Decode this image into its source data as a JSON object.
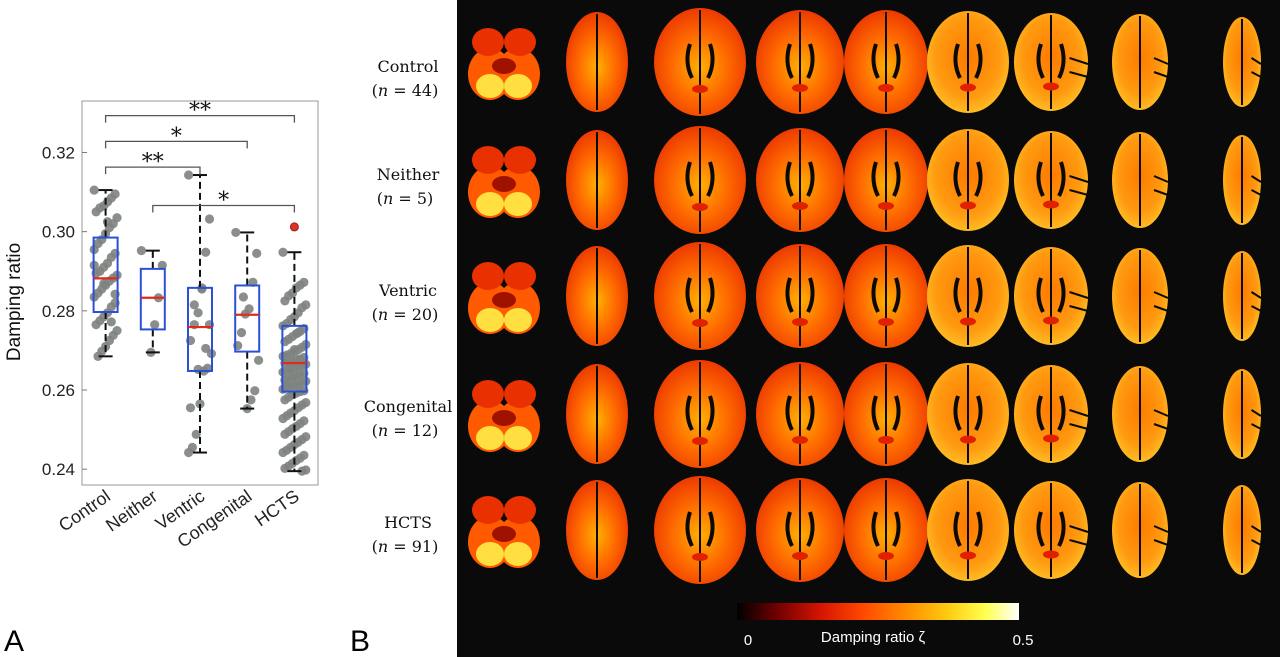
{
  "panel_letters": {
    "a": "A",
    "b": "B"
  },
  "chart_data": [
    {
      "type": "box",
      "panel": "A",
      "ylabel": "Damping ratio",
      "ylim": [
        0.236,
        0.333
      ],
      "yticks": [
        0.24,
        0.26,
        0.28,
        0.3,
        0.32
      ],
      "ytick_labels": [
        "0.24",
        "0.26",
        "0.28",
        "0.30",
        "0.32"
      ],
      "categories": [
        "Control",
        "Neither",
        "Ventric",
        "Congenital",
        "HCTS"
      ],
      "box_color": "#2b4fd6",
      "median_color": "#e02b1c",
      "point_color": "#7d8380",
      "outlier_color": "#e0302a",
      "boxes": [
        {
          "q1": 0.2797,
          "median": 0.2882,
          "q3": 0.2985,
          "whisker_low": 0.2685,
          "whisker_high": 0.3105,
          "points": [
            0.3105,
            0.3095,
            0.3085,
            0.3075,
            0.3065,
            0.306,
            0.305,
            0.3035,
            0.302,
            0.301,
            0.2995,
            0.298,
            0.297,
            0.2955,
            0.2945,
            0.2935,
            0.292,
            0.291,
            0.29,
            0.2895,
            0.289,
            0.2883,
            0.2875,
            0.2865,
            0.2855,
            0.2845,
            0.2835,
            0.282,
            0.281,
            0.2795,
            0.2785,
            0.2775,
            0.2765,
            0.275,
            0.2738,
            0.2725,
            0.271,
            0.2698,
            0.2685,
            0.2915,
            0.2842,
            0.2772,
            0.3025,
            0.2868
          ],
          "outliers": []
        },
        {
          "q1": 0.2753,
          "median": 0.2833,
          "q3": 0.2906,
          "whisker_low": 0.2695,
          "whisker_high": 0.2952,
          "points": [
            0.2952,
            0.2915,
            0.2833,
            0.2765,
            0.2695
          ],
          "outliers": []
        },
        {
          "q1": 0.2648,
          "median": 0.2759,
          "q3": 0.2858,
          "whisker_low": 0.2442,
          "whisker_high": 0.3143,
          "points": [
            0.3143,
            0.3032,
            0.2948,
            0.2855,
            0.2795,
            0.2765,
            0.2725,
            0.2692,
            0.2655,
            0.2648,
            0.2565,
            0.2488,
            0.2455,
            0.2442,
            0.2765,
            0.2705,
            0.2858,
            0.2652,
            0.2815,
            0.2555
          ],
          "outliers": []
        },
        {
          "q1": 0.2697,
          "median": 0.279,
          "q3": 0.2864,
          "whisker_low": 0.2553,
          "whisker_high": 0.2998,
          "points": [
            0.2998,
            0.2945,
            0.2872,
            0.2805,
            0.2792,
            0.2745,
            0.2712,
            0.2675,
            0.2598,
            0.2575,
            0.2553,
            0.2835
          ],
          "outliers": []
        },
        {
          "q1": 0.2596,
          "median": 0.2668,
          "q3": 0.2762,
          "whisker_low": 0.2395,
          "whisker_high": 0.2948,
          "points": [
            0.2948,
            0.2872,
            0.2865,
            0.2858,
            0.2845,
            0.2838,
            0.2825,
            0.2815,
            0.2808,
            0.2795,
            0.2785,
            0.2778,
            0.2768,
            0.2762,
            0.2755,
            0.2748,
            0.2742,
            0.2735,
            0.2728,
            0.2722,
            0.2715,
            0.2708,
            0.2702,
            0.2695,
            0.2692,
            0.2688,
            0.2685,
            0.2682,
            0.2678,
            0.2675,
            0.2672,
            0.2669,
            0.2668,
            0.2665,
            0.2662,
            0.2658,
            0.2655,
            0.2652,
            0.2648,
            0.2645,
            0.2642,
            0.2638,
            0.2635,
            0.2632,
            0.2628,
            0.2625,
            0.2622,
            0.2618,
            0.2615,
            0.2612,
            0.2608,
            0.2605,
            0.2602,
            0.2598,
            0.2596,
            0.2592,
            0.2588,
            0.2582,
            0.2575,
            0.2568,
            0.2562,
            0.2555,
            0.2548,
            0.2542,
            0.2535,
            0.2528,
            0.2522,
            0.2515,
            0.2508,
            0.2502,
            0.2495,
            0.2488,
            0.2482,
            0.2475,
            0.2468,
            0.2462,
            0.2455,
            0.2448,
            0.2442,
            0.2435,
            0.2428,
            0.2422,
            0.2415,
            0.2408,
            0.2402,
            0.2398,
            0.2395,
            0.2745,
            0.2702,
            0.2655,
            0.2612
          ],
          "outliers": [
            0.3012
          ]
        }
      ],
      "significance": [
        {
          "from": 0,
          "to": 4,
          "label": "**",
          "y": 0.3293
        },
        {
          "from": 0,
          "to": 3,
          "label": "*",
          "y": 0.3228
        },
        {
          "from": 0,
          "to": 2,
          "label": "**",
          "y": 0.3163
        },
        {
          "from": 1,
          "to": 4,
          "label": "*",
          "y": 0.3066
        }
      ]
    },
    {
      "type": "heatmap",
      "panel": "B",
      "groups": [
        {
          "name": "Control",
          "n": "(𝑛 = 44)"
        },
        {
          "name": "Neither",
          "n": "(𝑛 = 5)"
        },
        {
          "name": "Ventric",
          "n": "(𝑛 = 20)"
        },
        {
          "name": "Congenital",
          "n": "(𝑛 = 12)"
        },
        {
          "name": "HCTS",
          "n": "(𝑛 = 91)"
        }
      ],
      "slice_count": 9,
      "colorbar": {
        "label": "Damping ratio ζ",
        "min_label": "0",
        "max_label": "0.5",
        "min": 0,
        "max": 0.5
      },
      "colormap": [
        "#000000",
        "#6e0000",
        "#d81500",
        "#ff4a00",
        "#ff8c00",
        "#ffcc10",
        "#ffff50",
        "#ffffff"
      ]
    }
  ]
}
